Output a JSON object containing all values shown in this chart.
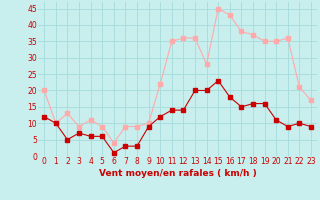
{
  "x": [
    0,
    1,
    2,
    3,
    4,
    5,
    6,
    7,
    8,
    9,
    10,
    11,
    12,
    13,
    14,
    15,
    16,
    17,
    18,
    19,
    20,
    21,
    22,
    23
  ],
  "wind_avg": [
    12,
    10,
    5,
    7,
    6,
    6,
    1,
    3,
    3,
    9,
    12,
    14,
    14,
    20,
    20,
    23,
    18,
    15,
    16,
    16,
    11,
    9,
    10,
    9
  ],
  "wind_gust": [
    20,
    10,
    13,
    9,
    11,
    9,
    4,
    9,
    9,
    10,
    22,
    35,
    36,
    36,
    28,
    45,
    43,
    38,
    37,
    35,
    35,
    36,
    21,
    17
  ],
  "xlabel": "Vent moyen/en rafales ( km/h )",
  "ylim": [
    0,
    47
  ],
  "yticks": [
    0,
    5,
    10,
    15,
    20,
    25,
    30,
    35,
    40,
    45
  ],
  "xticks": [
    0,
    1,
    2,
    3,
    4,
    5,
    6,
    7,
    8,
    9,
    10,
    11,
    12,
    13,
    14,
    15,
    16,
    17,
    18,
    19,
    20,
    21,
    22,
    23
  ],
  "bg_color": "#c8eeee",
  "grid_color": "#aadddd",
  "avg_color": "#cc0000",
  "gust_color": "#ffaaaa",
  "xlabel_color": "#cc0000",
  "tick_color": "#cc0000",
  "tick_fontsize": 5.5,
  "xlabel_fontsize": 6.5,
  "marker_size": 2.5,
  "linewidth": 0.8
}
